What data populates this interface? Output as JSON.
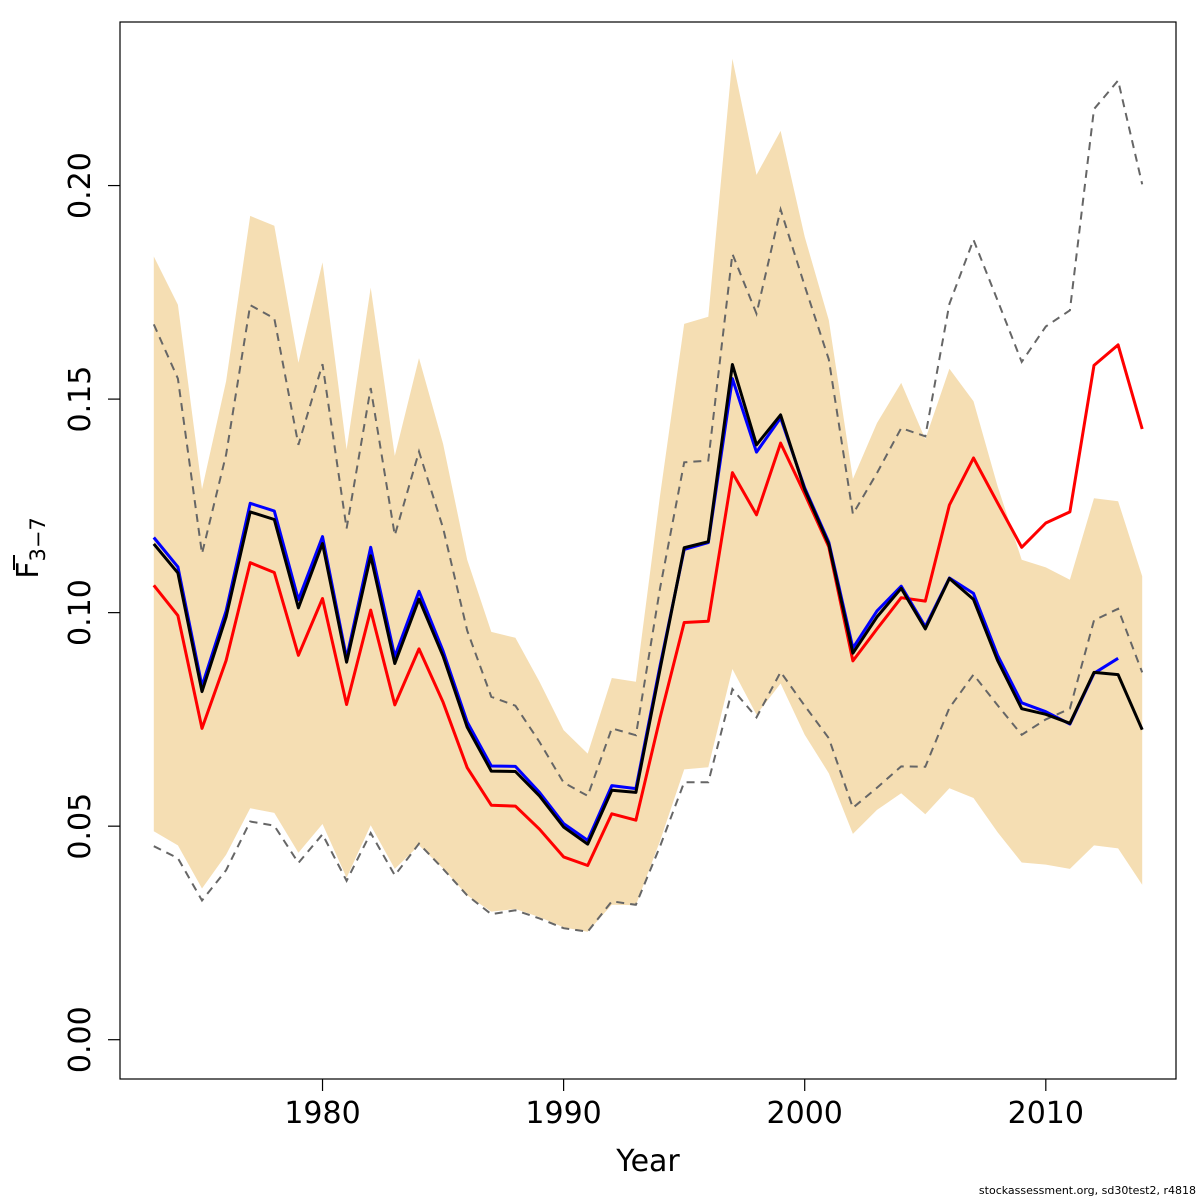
{
  "chart_data": {
    "type": "line",
    "xlabel": "Year",
    "ylabel_main": "F",
    "ylabel_sub": "3−7",
    "xlim": [
      1971.6,
      2015.4
    ],
    "ylim": [
      -0.0092,
      0.2383
    ],
    "x_ticks": [
      1980,
      1990,
      2000,
      2010
    ],
    "x_tick_labels": [
      "1980",
      "1990",
      "2000",
      "2010"
    ],
    "y_ticks": [
      0.0,
      0.05,
      0.1,
      0.15,
      0.2
    ],
    "y_tick_labels": [
      "0.00",
      "0.05",
      "0.10",
      "0.15",
      "0.20"
    ],
    "band_color": "#f5deb3",
    "band": {
      "x": [
        1973,
        1974,
        1975,
        1976,
        1977,
        1978,
        1979,
        1980,
        1981,
        1982,
        1983,
        1984,
        1985,
        1986,
        1987,
        1988,
        1989,
        1990,
        1991,
        1992,
        1993,
        1994,
        1995,
        1996,
        1997,
        1998,
        1999,
        2000,
        2001,
        2002,
        2003,
        2004,
        2005,
        2006,
        2007,
        2008,
        2009,
        2010,
        2011,
        2012,
        2013,
        2014
      ],
      "upper": [
        0.1834,
        0.1721,
        0.1289,
        0.1542,
        0.1929,
        0.1906,
        0.1585,
        0.182,
        0.1382,
        0.1761,
        0.1367,
        0.1596,
        0.1395,
        0.1124,
        0.0955,
        0.0941,
        0.0838,
        0.0725,
        0.067,
        0.0847,
        0.0838,
        0.1275,
        0.1676,
        0.1693,
        0.2297,
        0.2025,
        0.2128,
        0.188,
        0.1685,
        0.1313,
        0.1444,
        0.1538,
        0.1406,
        0.1571,
        0.1495,
        0.1296,
        0.1124,
        0.1106,
        0.1077,
        0.1268,
        0.1261,
        0.1085
      ],
      "lower": [
        0.0488,
        0.0455,
        0.0354,
        0.0433,
        0.0542,
        0.0531,
        0.0438,
        0.0505,
        0.0379,
        0.0502,
        0.04,
        0.0455,
        0.0401,
        0.0338,
        0.03,
        0.0306,
        0.0287,
        0.0263,
        0.0253,
        0.0316,
        0.0315,
        0.0466,
        0.0633,
        0.0638,
        0.0868,
        0.0761,
        0.0834,
        0.0714,
        0.0624,
        0.0482,
        0.0538,
        0.0577,
        0.0528,
        0.0589,
        0.0566,
        0.0486,
        0.0415,
        0.041,
        0.04,
        0.0455,
        0.0448,
        0.0363
      ]
    },
    "dashed_color": "#666666",
    "dashed_upper": [
      0.1675,
      0.1548,
      0.1138,
      0.137,
      0.172,
      0.1689,
      0.1393,
      0.1582,
      0.1197,
      0.1526,
      0.1181,
      0.1377,
      0.1198,
      0.0958,
      0.0803,
      0.0782,
      0.0697,
      0.0602,
      0.0571,
      0.0729,
      0.0713,
      0.1058,
      0.1352,
      0.1356,
      0.184,
      0.17,
      0.1944,
      0.1765,
      0.1593,
      0.1231,
      0.1327,
      0.1432,
      0.1413,
      0.1723,
      0.1873,
      0.1731,
      0.1587,
      0.167,
      0.1708,
      0.2179,
      0.2246,
      0.2003
    ],
    "dashed_lower": [
      0.0453,
      0.0425,
      0.0326,
      0.0397,
      0.0511,
      0.0501,
      0.0414,
      0.0481,
      0.0372,
      0.0484,
      0.0385,
      0.0459,
      0.04,
      0.0338,
      0.0294,
      0.0303,
      0.0284,
      0.0261,
      0.0253,
      0.0324,
      0.0316,
      0.0453,
      0.0603,
      0.0603,
      0.0821,
      0.0755,
      0.0861,
      0.0782,
      0.0706,
      0.0543,
      0.059,
      0.064,
      0.0639,
      0.0777,
      0.0855,
      0.0783,
      0.0714,
      0.075,
      0.0775,
      0.0982,
      0.1009,
      0.086
    ],
    "series": [
      {
        "color": "#ff0000",
        "values": [
          0.1064,
          0.0993,
          0.0729,
          0.0888,
          0.1117,
          0.1094,
          0.09,
          0.1033,
          0.0785,
          0.1006,
          0.0784,
          0.0915,
          0.079,
          0.0637,
          0.0549,
          0.0547,
          0.0493,
          0.0428,
          0.0408,
          0.0529,
          0.0514,
          0.0754,
          0.0977,
          0.098,
          0.1328,
          0.1229,
          0.1397,
          0.1278,
          0.1154,
          0.0887,
          0.0962,
          0.1035,
          0.1027,
          0.1252,
          0.1362,
          0.1257,
          0.1153,
          0.121,
          0.1236,
          0.1579,
          0.1627,
          0.143
        ]
      },
      {
        "color": "#0000ff",
        "values": [
          0.1176,
          0.1107,
          0.0828,
          0.1004,
          0.1256,
          0.1238,
          0.103,
          0.1178,
          0.0893,
          0.1153,
          0.0897,
          0.105,
          0.091,
          0.0744,
          0.0641,
          0.064,
          0.0579,
          0.0506,
          0.0467,
          0.0595,
          0.0588,
          0.0876,
          0.1148,
          0.1164,
          0.1548,
          0.1376,
          0.1456,
          0.1292,
          0.1165,
          0.0917,
          0.1004,
          0.1062,
          0.0967,
          0.1081,
          0.1045,
          0.09,
          0.0789,
          0.0768,
          0.0739,
          0.0858,
          0.0893,
          null
        ]
      },
      {
        "color": "#000000",
        "values": [
          0.1161,
          0.1093,
          0.0815,
          0.099,
          0.1236,
          0.1218,
          0.1011,
          0.1162,
          0.0884,
          0.1133,
          0.0881,
          0.1032,
          0.0898,
          0.0732,
          0.0629,
          0.0628,
          0.0571,
          0.0498,
          0.0458,
          0.0584,
          0.0579,
          0.0868,
          0.1152,
          0.1166,
          0.1581,
          0.1393,
          0.1463,
          0.1288,
          0.116,
          0.0905,
          0.099,
          0.1057,
          0.0962,
          0.108,
          0.1031,
          0.0888,
          0.0775,
          0.0762,
          0.0741,
          0.086,
          0.0855,
          0.0726
        ]
      }
    ]
  },
  "footer": {
    "credit": "stockassessment.org, sd30test2, r4818"
  }
}
